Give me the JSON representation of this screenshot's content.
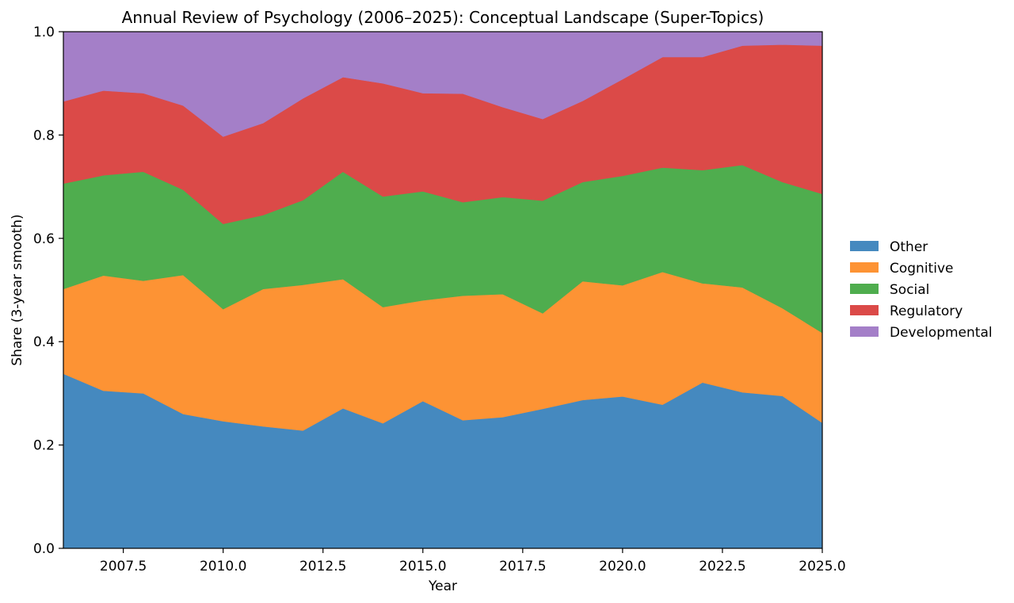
{
  "chart_data": {
    "type": "area",
    "stacked": true,
    "title": "Annual Review of Psychology (2006–2025): Conceptual Landscape (Super-Topics)",
    "xlabel": "Year",
    "ylabel": "Share (3-year smooth)",
    "xlim": [
      2006,
      2025
    ],
    "ylim": [
      0,
      1
    ],
    "x_ticks": [
      2007.5,
      2010.0,
      2012.5,
      2015.0,
      2017.5,
      2020.0,
      2022.5,
      2025.0
    ],
    "x_tick_labels": [
      "2007.5",
      "2010.0",
      "2012.5",
      "2015.0",
      "2017.5",
      "2020.0",
      "2022.5",
      "2025.0"
    ],
    "y_ticks": [
      0.0,
      0.2,
      0.4,
      0.6,
      0.8,
      1.0
    ],
    "y_tick_labels": [
      "0.0",
      "0.2",
      "0.4",
      "0.6",
      "0.8",
      "1.0"
    ],
    "legend_position": "outside right",
    "grid": false,
    "x": [
      2006,
      2007,
      2008,
      2009,
      2010,
      2011,
      2012,
      2013,
      2014,
      2015,
      2016,
      2017,
      2018,
      2019,
      2020,
      2021,
      2022,
      2023,
      2024,
      2025
    ],
    "series": [
      {
        "name": "Other",
        "color": "#4589bf",
        "values": [
          0.338,
          0.305,
          0.3,
          0.26,
          0.246,
          0.236,
          0.228,
          0.271,
          0.242,
          0.285,
          0.248,
          0.254,
          0.27,
          0.287,
          0.294,
          0.278,
          0.321,
          0.302,
          0.295,
          0.243
        ]
      },
      {
        "name": "Cognitive",
        "color": "#fd9334",
        "values": [
          0.164,
          0.223,
          0.218,
          0.269,
          0.217,
          0.266,
          0.282,
          0.25,
          0.225,
          0.195,
          0.241,
          0.238,
          0.185,
          0.23,
          0.215,
          0.257,
          0.192,
          0.203,
          0.17,
          0.174
        ]
      },
      {
        "name": "Social",
        "color": "#4fad4e",
        "values": [
          0.204,
          0.194,
          0.211,
          0.165,
          0.165,
          0.143,
          0.164,
          0.208,
          0.214,
          0.211,
          0.181,
          0.188,
          0.218,
          0.192,
          0.212,
          0.202,
          0.219,
          0.237,
          0.244,
          0.269
        ]
      },
      {
        "name": "Regulatory",
        "color": "#db4a48",
        "values": [
          0.159,
          0.164,
          0.152,
          0.163,
          0.169,
          0.178,
          0.197,
          0.183,
          0.219,
          0.19,
          0.21,
          0.174,
          0.158,
          0.157,
          0.187,
          0.214,
          0.219,
          0.231,
          0.266,
          0.287
        ]
      },
      {
        "name": "Developmental",
        "color": "#a47fc8",
        "values": [
          0.135,
          0.114,
          0.119,
          0.143,
          0.203,
          0.177,
          0.129,
          0.088,
          0.1,
          0.119,
          0.12,
          0.146,
          0.169,
          0.134,
          0.092,
          0.049,
          0.049,
          0.027,
          0.025,
          0.027
        ]
      }
    ]
  }
}
